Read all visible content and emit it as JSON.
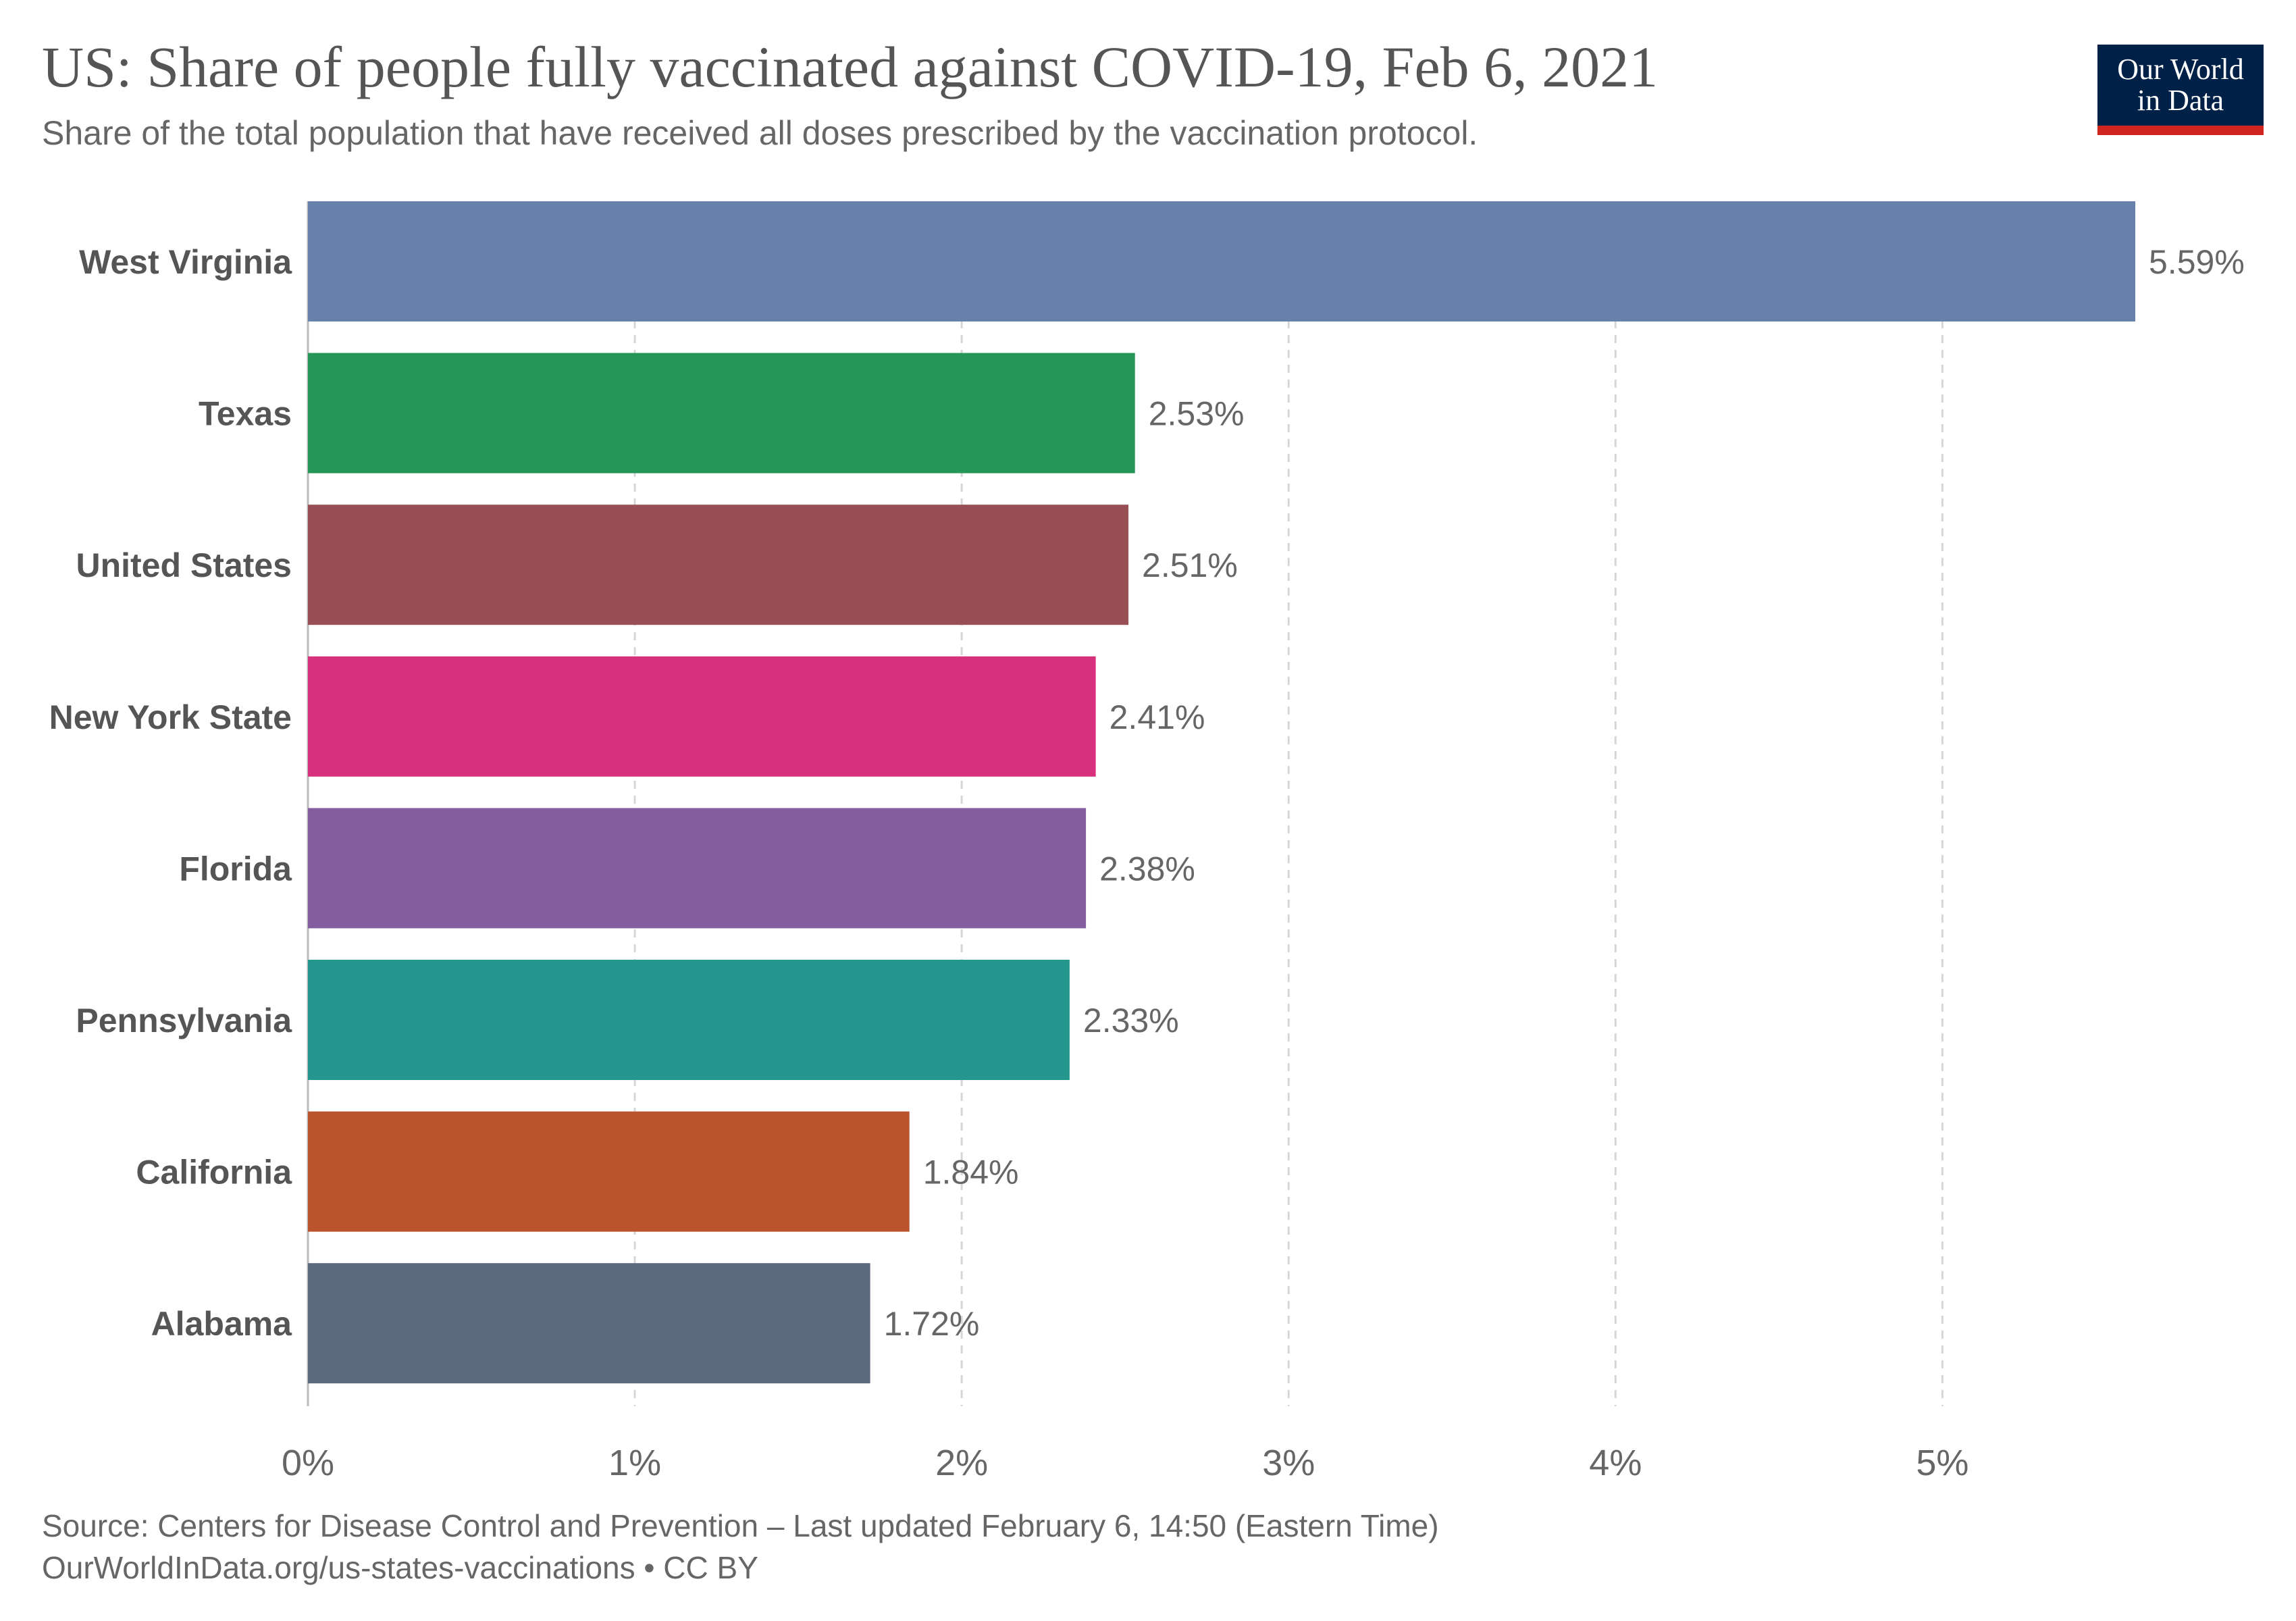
{
  "title": "US: Share of people fully vaccinated against COVID-19, Feb 6, 2021",
  "subtitle": "Share of the total population that have received all doses prescribed by the vaccination protocol.",
  "logo": {
    "line1": "Our World",
    "line2": "in Data",
    "bg_color": "#002147",
    "accent_color": "#ce261e"
  },
  "footer": {
    "source": "Source: Centers for Disease Control and Prevention – Last updated February 6, 14:50 (Eastern Time)",
    "link": "OurWorldInData.org/us-states-vaccinations • CC BY"
  },
  "chart_data": {
    "type": "bar",
    "orientation": "horizontal",
    "categories": [
      "West Virginia",
      "Texas",
      "United States",
      "New York State",
      "Florida",
      "Pennsylvania",
      "California",
      "Alabama"
    ],
    "values": [
      5.59,
      2.53,
      2.51,
      2.41,
      2.38,
      2.33,
      1.84,
      1.72
    ],
    "value_labels": [
      "5.59%",
      "2.53%",
      "2.51%",
      "2.41%",
      "2.38%",
      "2.33%",
      "1.84%",
      "1.72%"
    ],
    "colors": [
      "#6780ac",
      "#259558",
      "#974f55",
      "#d7307c",
      "#845da0",
      "#25968e",
      "#bb542d",
      "#5a697e"
    ],
    "xlim": [
      0,
      5.59
    ],
    "x_ticks": [
      0,
      1,
      2,
      3,
      4,
      5
    ],
    "x_tick_labels": [
      "0%",
      "1%",
      "2%",
      "3%",
      "4%",
      "5%"
    ],
    "grid": "vertical dashed",
    "legend": "none",
    "xlabel": "",
    "ylabel": ""
  }
}
